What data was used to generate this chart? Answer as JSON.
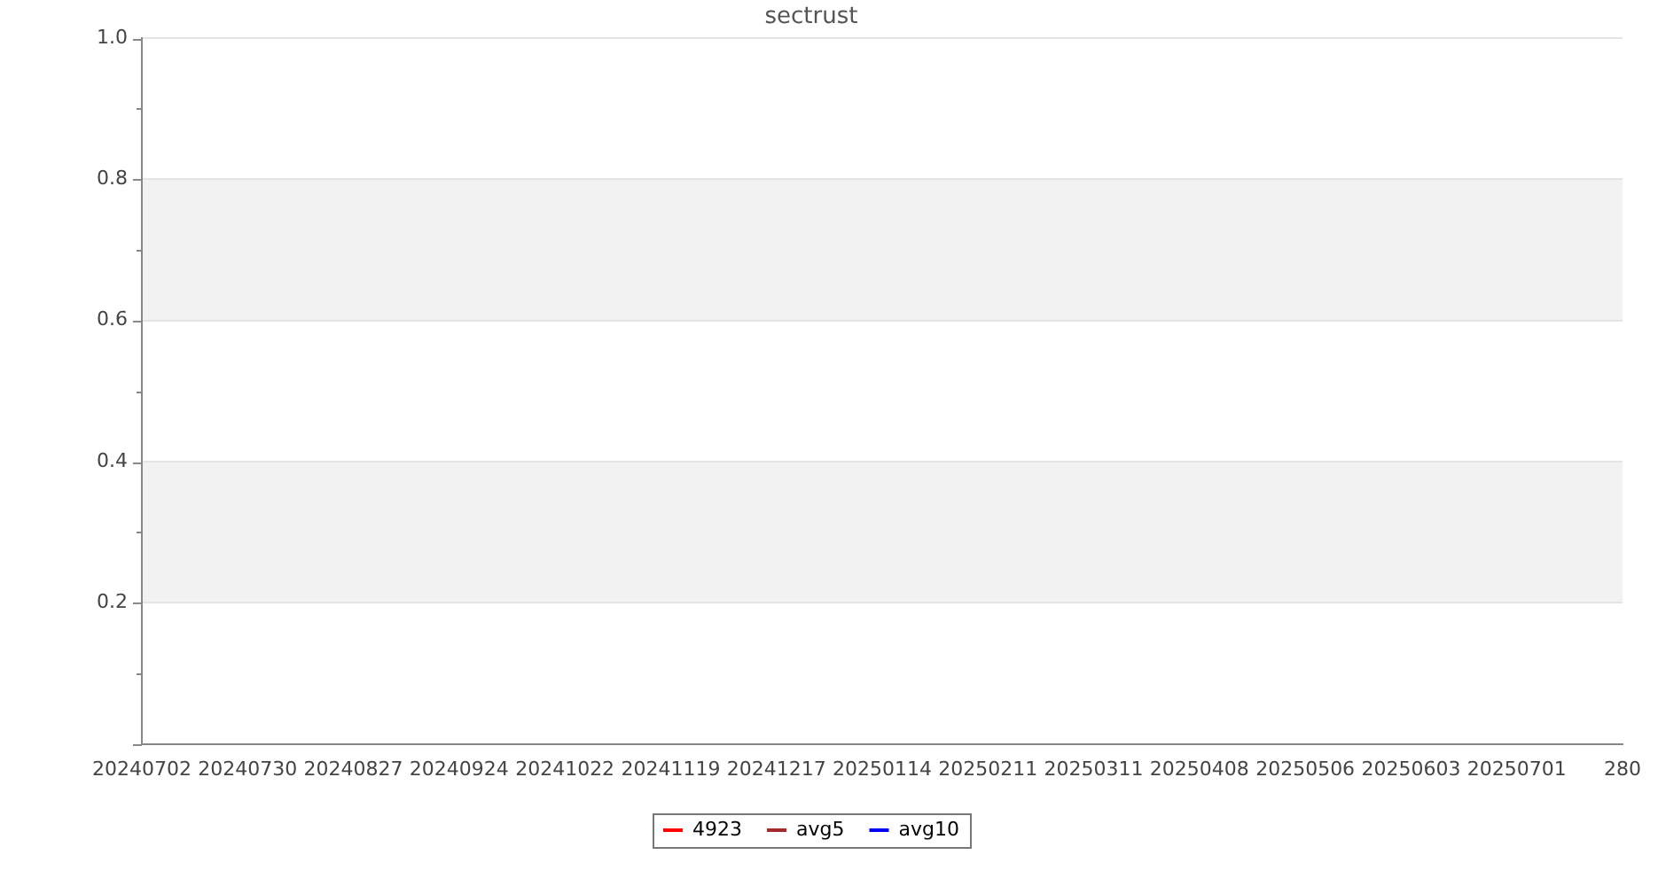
{
  "chart_data": {
    "type": "line",
    "title": "sectrust",
    "categories": [
      "20240702",
      "20240730",
      "20240827",
      "20240924",
      "20241022",
      "20241119",
      "20241217",
      "20250114",
      "20250211",
      "20250311",
      "20250408",
      "20250506",
      "20250603",
      "20250701",
      "280"
    ],
    "series": [
      {
        "name": "4923",
        "color": "#ff0000",
        "values": [
          null,
          null,
          null,
          null,
          null,
          null,
          null,
          null,
          null,
          null,
          null,
          null,
          null,
          null,
          null
        ]
      },
      {
        "name": "avg5",
        "color": "#a52a2a",
        "values": [
          null,
          null,
          null,
          null,
          null,
          null,
          null,
          null,
          null,
          null,
          null,
          null,
          null,
          null,
          null
        ]
      },
      {
        "name": "avg10",
        "color": "#0000ff",
        "values": [
          null,
          null,
          null,
          null,
          null,
          null,
          null,
          null,
          null,
          null,
          null,
          null,
          null,
          null,
          null
        ]
      }
    ],
    "ylim": [
      0,
      1
    ],
    "yticks": [
      {
        "value": 0,
        "label": null
      },
      {
        "value": 0.1,
        "label": null
      },
      0.2,
      {
        "value": 0.3,
        "label": null
      },
      0.4,
      {
        "value": 0.5,
        "label": null
      },
      0.6,
      {
        "value": 0.7,
        "label": null
      },
      0.8,
      {
        "value": 0.9,
        "label": null
      },
      {
        "value": 1,
        "label": "1.0"
      }
    ],
    "grid": "y",
    "bands": [
      {
        "axis": "y",
        "from": 0.2,
        "to": 0.4,
        "color": "#f2f2f2"
      },
      {
        "axis": "y",
        "from": 0.6,
        "to": 0.8,
        "color": "#f2f2f2"
      }
    ],
    "legend": "bottom"
  }
}
